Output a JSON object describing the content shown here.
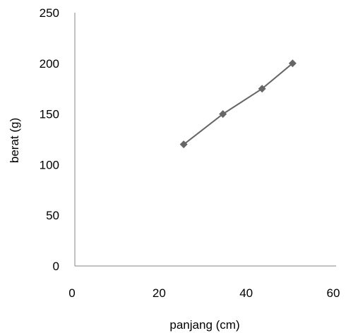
{
  "chart_data": {
    "type": "line",
    "title": "",
    "xlabel": "panjang (cm)",
    "ylabel": "berat (g)",
    "xlim": [
      0,
      60
    ],
    "ylim": [
      0,
      250
    ],
    "x_ticks": [
      0,
      20,
      40,
      60
    ],
    "y_ticks": [
      0,
      50,
      100,
      150,
      200,
      250
    ],
    "grid": false,
    "legend": "none",
    "series": [
      {
        "x": [
          25,
          34,
          43,
          50
        ],
        "y": [
          120,
          150,
          175,
          200
        ],
        "color": "#666666",
        "marker": "diamond"
      }
    ]
  }
}
